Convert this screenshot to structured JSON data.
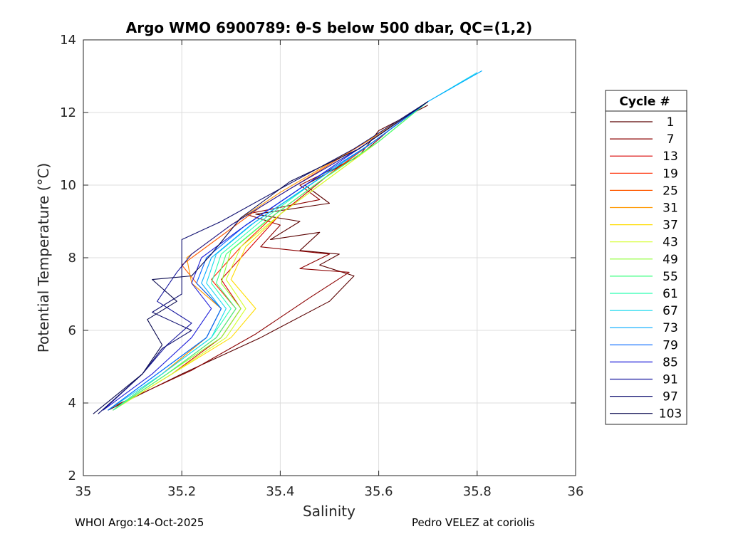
{
  "chart_data": {
    "type": "line",
    "title": "Argo WMO 6900789: θ-S below 500 dbar,  QC=(1,2)",
    "xlabel": "Salinity",
    "ylabel": "Potential Temperature (°C)",
    "xlim": [
      35,
      36
    ],
    "ylim": [
      2,
      14
    ],
    "xticks": [
      35,
      35.2,
      35.4,
      35.6,
      35.8,
      36
    ],
    "xtick_labels": [
      "35",
      "35.2",
      "35.4",
      "35.6",
      "35.8",
      "36"
    ],
    "yticks": [
      2,
      4,
      6,
      8,
      10,
      12,
      14
    ],
    "ytick_labels": [
      "2",
      "4",
      "6",
      "8",
      "10",
      "12",
      "14"
    ],
    "grid": true,
    "legend": {
      "title": "Cycle #",
      "position": "outside-right",
      "entries": [
        "1",
        "7",
        "13",
        "19",
        "25",
        "31",
        "37",
        "43",
        "49",
        "55",
        "61",
        "67",
        "73",
        "79",
        "85",
        "91",
        "97",
        "103"
      ],
      "colors": [
        "#5a0000",
        "#8c0000",
        "#d90000",
        "#ff2a00",
        "#ff5a00",
        "#ff9900",
        "#ffdd00",
        "#d4ff2a",
        "#8cff33",
        "#3dff80",
        "#2affb0",
        "#1ad9ee",
        "#00aaff",
        "#0066ff",
        "#1f1fd9",
        "#1a1aa0",
        "#101070",
        "#0a0a50"
      ]
    },
    "series": [
      {
        "name": "1",
        "x": [
          35.05,
          35.2,
          35.36,
          35.5,
          35.55,
          35.48,
          35.52,
          35.44,
          35.48,
          35.38,
          35.44,
          35.35,
          35.5,
          35.45,
          35.56,
          35.6,
          35.7
        ],
        "y": [
          3.8,
          4.8,
          5.8,
          6.8,
          7.5,
          7.8,
          8.1,
          8.2,
          8.7,
          8.5,
          9.0,
          9.2,
          9.5,
          10.0,
          10.8,
          11.5,
          12.2
        ]
      },
      {
        "name": "7",
        "x": [
          35.06,
          35.22,
          35.35,
          35.46,
          35.54,
          35.44,
          35.5,
          35.36,
          35.4,
          35.33,
          35.48,
          35.44,
          35.56,
          35.62,
          35.7
        ],
        "y": [
          3.9,
          4.9,
          5.9,
          6.9,
          7.6,
          7.7,
          8.1,
          8.3,
          8.9,
          9.2,
          9.6,
          10.0,
          10.8,
          11.5,
          12.3
        ]
      },
      {
        "name": "13",
        "x": [
          35.06,
          35.18,
          35.28,
          35.32,
          35.28,
          35.34,
          35.4,
          35.5,
          35.6,
          35.7
        ],
        "y": [
          3.8,
          4.8,
          5.8,
          6.6,
          7.4,
          8.3,
          9.2,
          10.3,
          11.3,
          12.3
        ]
      },
      {
        "name": "19",
        "x": [
          35.06,
          35.17,
          35.27,
          35.31,
          35.26,
          35.32,
          35.39,
          35.5,
          35.6,
          35.7
        ],
        "y": [
          3.8,
          4.8,
          5.8,
          6.6,
          7.4,
          8.3,
          9.2,
          10.3,
          11.3,
          12.3
        ]
      },
      {
        "name": "25",
        "x": [
          35.06,
          35.16,
          35.25,
          35.28,
          35.23,
          35.2,
          35.27,
          35.36,
          35.48,
          35.6,
          35.7
        ],
        "y": [
          3.8,
          4.8,
          5.8,
          6.6,
          7.3,
          7.8,
          8.5,
          9.4,
          10.4,
          11.4,
          12.3
        ]
      },
      {
        "name": "31",
        "x": [
          35.06,
          35.16,
          35.25,
          35.28,
          35.22,
          35.21,
          35.3,
          35.4,
          35.5,
          35.6,
          35.7
        ],
        "y": [
          3.8,
          4.8,
          5.8,
          6.6,
          7.3,
          8.0,
          8.9,
          9.8,
          10.6,
          11.4,
          12.3
        ]
      },
      {
        "name": "37",
        "x": [
          35.06,
          35.18,
          35.3,
          35.35,
          35.3,
          35.33,
          35.4,
          35.5,
          35.6,
          35.7
        ],
        "y": [
          3.8,
          4.8,
          5.8,
          6.6,
          7.4,
          8.3,
          9.2,
          10.2,
          11.2,
          12.3
        ]
      },
      {
        "name": "43",
        "x": [
          35.06,
          35.18,
          35.29,
          35.33,
          35.29,
          35.32,
          35.4,
          35.5,
          35.6,
          35.7
        ],
        "y": [
          3.8,
          4.8,
          5.8,
          6.6,
          7.4,
          8.3,
          9.2,
          10.2,
          11.2,
          12.3
        ]
      },
      {
        "name": "49",
        "x": [
          35.06,
          35.17,
          35.28,
          35.32,
          35.28,
          35.3,
          35.38,
          35.49,
          35.6,
          35.7
        ],
        "y": [
          3.8,
          4.8,
          5.8,
          6.6,
          7.3,
          8.2,
          9.1,
          10.2,
          11.2,
          12.3
        ]
      },
      {
        "name": "55",
        "x": [
          35.06,
          35.17,
          35.27,
          35.31,
          35.27,
          35.29,
          35.37,
          35.48,
          35.6,
          35.7
        ],
        "y": [
          3.8,
          4.8,
          5.8,
          6.6,
          7.3,
          8.1,
          9.0,
          10.1,
          11.2,
          12.3
        ]
      },
      {
        "name": "61",
        "x": [
          35.06,
          35.16,
          35.26,
          35.3,
          35.26,
          35.28,
          35.36,
          35.47,
          35.59,
          35.7
        ],
        "y": [
          3.8,
          4.8,
          5.8,
          6.6,
          7.3,
          8.1,
          9.0,
          10.1,
          11.2,
          12.3
        ]
      },
      {
        "name": "67",
        "x": [
          35.05,
          35.16,
          35.26,
          35.29,
          35.25,
          35.27,
          35.35,
          35.47,
          35.59,
          35.7,
          35.8
        ],
        "y": [
          3.8,
          4.8,
          5.8,
          6.6,
          7.3,
          8.1,
          9.0,
          10.1,
          11.2,
          12.3,
          13.1
        ]
      },
      {
        "name": "73",
        "x": [
          35.05,
          35.15,
          35.25,
          35.28,
          35.24,
          35.26,
          35.34,
          35.46,
          35.58,
          35.7,
          35.81
        ],
        "y": [
          3.8,
          4.8,
          5.8,
          6.6,
          7.3,
          8.0,
          8.9,
          10.0,
          11.1,
          12.3,
          13.15
        ]
      },
      {
        "name": "79",
        "x": [
          35.05,
          35.15,
          35.25,
          35.28,
          35.23,
          35.25,
          35.33,
          35.45,
          35.58,
          35.7
        ],
        "y": [
          3.8,
          4.8,
          5.8,
          6.6,
          7.3,
          8.0,
          8.9,
          10.0,
          11.1,
          12.3
        ]
      },
      {
        "name": "85",
        "x": [
          35.04,
          35.14,
          35.22,
          35.26,
          35.22,
          35.24,
          35.32,
          35.44,
          35.57,
          35.7
        ],
        "y": [
          3.8,
          4.8,
          5.8,
          6.6,
          7.3,
          8.0,
          8.8,
          9.9,
          11.1,
          12.3
        ]
      },
      {
        "name": "91",
        "x": [
          35.04,
          35.12,
          35.17,
          35.22,
          35.15,
          35.19,
          35.22,
          35.3,
          35.42,
          35.56,
          35.7
        ],
        "y": [
          3.8,
          4.8,
          5.6,
          6.2,
          6.8,
          7.6,
          8.1,
          8.9,
          9.9,
          11.0,
          12.3
        ]
      },
      {
        "name": "97",
        "x": [
          35.03,
          35.12,
          35.16,
          35.22,
          35.14,
          35.2,
          35.2,
          35.28,
          35.4,
          35.55,
          35.7
        ],
        "y": [
          3.7,
          4.8,
          5.5,
          6.0,
          6.5,
          7.0,
          8.5,
          9.0,
          9.9,
          11.0,
          12.3
        ]
      },
      {
        "name": "103",
        "x": [
          35.02,
          35.12,
          35.16,
          35.13,
          35.19,
          35.14,
          35.22,
          35.26,
          35.32,
          35.42,
          35.56,
          35.7
        ],
        "y": [
          3.7,
          4.8,
          5.6,
          6.3,
          6.8,
          7.4,
          7.5,
          8.1,
          9.1,
          10.1,
          11.0,
          12.3
        ]
      }
    ]
  },
  "footer": {
    "left": "WHOI Argo:14-Oct-2025",
    "right": "Pedro VELEZ at coriolis"
  }
}
